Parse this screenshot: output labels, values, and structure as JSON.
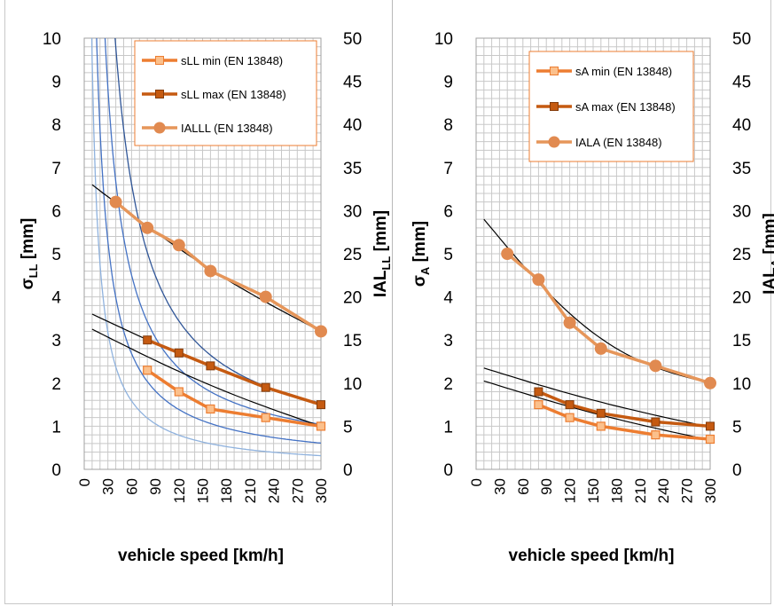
{
  "colors": {
    "min_fill": "#fbc08c",
    "min_stroke": "#ed7d31",
    "max_fill": "#c55a11",
    "max_stroke": "#843c0c",
    "ial": "#e18a50",
    "ial_line": "#e6965a",
    "trend": "#000000",
    "grid": "#c8c8c8",
    "blue_dark": "#2f5597",
    "blue_mid": "#4472c4",
    "blue_light": "#8fb2de",
    "legend_border": "#ed7d31"
  },
  "chart_data": [
    {
      "type": "line",
      "xlabel": "vehicle speed [km/h]",
      "ylabel_left": {
        "main": "σ",
        "sub": "LL",
        "unit": " [mm]"
      },
      "ylabel_right": {
        "main": "IAL",
        "sub": "LL",
        "unit": " [mm]"
      },
      "xlim": [
        0,
        300
      ],
      "xticks": [
        "0",
        "30",
        "60",
        "90",
        "120",
        "150",
        "180",
        "210",
        "240",
        "270",
        "300"
      ],
      "ylim_left": [
        0,
        10
      ],
      "yticks_left": [
        "0",
        "1",
        "2",
        "3",
        "4",
        "5",
        "6",
        "7",
        "8",
        "9",
        "10"
      ],
      "ylim_right": [
        0,
        50
      ],
      "yticks_right": [
        "0",
        "5",
        "10",
        "15",
        "20",
        "25",
        "30",
        "35",
        "40",
        "45",
        "50"
      ],
      "grid": true,
      "legend_position": "top-right",
      "series": [
        {
          "name": "sLL min (EN 13848)",
          "axis": "left",
          "marker": "square-light",
          "x": [
            80,
            120,
            160,
            230,
            300
          ],
          "y": [
            2.3,
            1.8,
            1.4,
            1.2,
            1.0
          ]
        },
        {
          "name": "sLL  max (EN 13848)",
          "axis": "left",
          "marker": "square-dark",
          "x": [
            80,
            120,
            160,
            230,
            300
          ],
          "y": [
            3.0,
            2.7,
            2.4,
            1.9,
            1.5
          ]
        },
        {
          "name": "IALLL (EN 13848)",
          "axis": "right",
          "marker": "circle",
          "x": [
            40,
            80,
            120,
            160,
            230,
            300
          ],
          "y": [
            31,
            28,
            26,
            23,
            20,
            16
          ]
        }
      ],
      "trendlines": [
        {
          "axis": "left",
          "x": [
            10,
            300
          ],
          "y": [
            3.25,
            1.0
          ]
        },
        {
          "axis": "left",
          "x": [
            10,
            300
          ],
          "y": [
            3.6,
            1.5
          ]
        },
        {
          "axis": "right",
          "x": [
            10,
            300
          ],
          "y": [
            33,
            16
          ]
        }
      ],
      "curves": [
        {
          "k": 5.5
        },
        {
          "k": 9
        },
        {
          "k": 15
        },
        {
          "k": 22
        }
      ]
    },
    {
      "type": "line",
      "xlabel": "vehicle speed [km/h]",
      "ylabel_left": {
        "main": "σ",
        "sub": "A",
        "unit": " [mm]"
      },
      "ylabel_right": {
        "main": "IAL",
        "sub": "A",
        "unit": " [mm]"
      },
      "xlim": [
        0,
        300
      ],
      "xticks": [
        "0",
        "30",
        "60",
        "90",
        "120",
        "150",
        "180",
        "210",
        "240",
        "270",
        "300"
      ],
      "ylim_left": [
        0,
        10
      ],
      "yticks_left": [
        "0",
        "1",
        "2",
        "3",
        "4",
        "5",
        "6",
        "7",
        "8",
        "9",
        "10"
      ],
      "ylim_right": [
        0,
        50
      ],
      "yticks_right": [
        "0",
        "5",
        "10",
        "15",
        "20",
        "25",
        "30",
        "35",
        "40",
        "45",
        "50"
      ],
      "grid": true,
      "legend_position": "top-right",
      "series": [
        {
          "name": "sA min (EN 13848)",
          "axis": "left",
          "marker": "square-light",
          "x": [
            80,
            120,
            160,
            230,
            300
          ],
          "y": [
            1.5,
            1.2,
            1.0,
            0.8,
            0.7
          ]
        },
        {
          "name": "sA max (EN 13848)",
          "axis": "left",
          "marker": "square-dark",
          "x": [
            80,
            120,
            160,
            230,
            300
          ],
          "y": [
            1.8,
            1.5,
            1.3,
            1.1,
            1.0
          ]
        },
        {
          "name": "IALA (EN 13848)",
          "axis": "right",
          "marker": "circle",
          "x": [
            40,
            80,
            120,
            160,
            230,
            300
          ],
          "y": [
            25,
            22,
            17,
            14,
            12,
            10
          ]
        }
      ],
      "trendlines": [
        {
          "axis": "left",
          "x": [
            10,
            300
          ],
          "y": [
            2.05,
            0.68
          ]
        },
        {
          "axis": "left",
          "x": [
            10,
            300
          ],
          "y": [
            2.35,
            0.98
          ]
        },
        {
          "axis": "right",
          "x": [
            10,
            300
          ],
          "y": [
            29,
            10
          ]
        }
      ],
      "curves": []
    }
  ]
}
